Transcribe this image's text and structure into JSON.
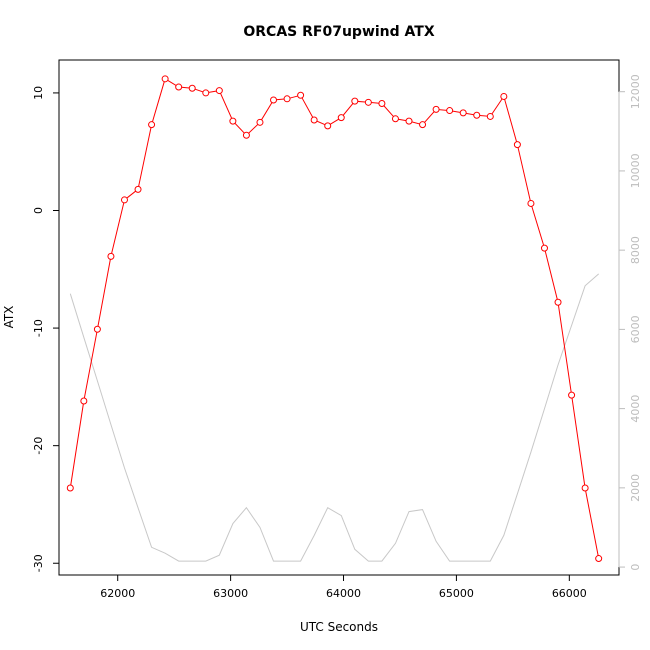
{
  "chart_data": {
    "type": "line",
    "title": "ORCAS RF07upwind ATX",
    "xlabel": "UTC Seconds",
    "ylabel": "ATX",
    "xlim": [
      61480,
      66440
    ],
    "ylim": [
      -31,
      12.8
    ],
    "y2lim": [
      -200,
      12800
    ],
    "x_ticks": [
      62000,
      63000,
      64000,
      65000,
      66000
    ],
    "y_ticks": [
      -30,
      -20,
      -10,
      0,
      10
    ],
    "y2_ticks": [
      0,
      2000,
      4000,
      6000,
      8000,
      10000,
      12000
    ],
    "grid": false,
    "colors": {
      "atx": "#ff0000",
      "altitude": "#c8c8c8"
    },
    "series": [
      {
        "axis": "left",
        "style": "line-markers",
        "x": [
          61580,
          61700,
          61820,
          61940,
          62060,
          62180,
          62300,
          62420,
          62540,
          62660,
          62780,
          62900,
          63020,
          63140,
          63260,
          63380,
          63500,
          63620,
          63740,
          63860,
          63980,
          64100,
          64220,
          64340,
          64460,
          64580,
          64700,
          64820,
          64940,
          65060,
          65180,
          65300,
          65420,
          65540,
          65660,
          65780,
          65900,
          66020,
          66140,
          66260
        ],
        "y": [
          -23.6,
          -16.2,
          -10.1,
          -3.9,
          0.9,
          1.8,
          7.3,
          11.2,
          10.5,
          10.4,
          10.0,
          10.2,
          7.6,
          6.4,
          7.5,
          9.4,
          9.5,
          9.8,
          7.7,
          7.2,
          7.9,
          9.3,
          9.2,
          9.1,
          7.8,
          7.6,
          7.3,
          8.6,
          8.5,
          8.3,
          8.1,
          8.0,
          9.7,
          5.6,
          0.6,
          -3.2,
          -7.8,
          -15.7,
          -23.6,
          -29.6
        ]
      },
      {
        "axis": "right",
        "style": "line",
        "x": [
          61580,
          61700,
          61820,
          61940,
          62060,
          62180,
          62300,
          62420,
          62540,
          62660,
          62780,
          62900,
          63020,
          63140,
          63260,
          63380,
          63500,
          63620,
          63740,
          63860,
          63980,
          64100,
          64220,
          64340,
          64460,
          64580,
          64700,
          64820,
          64940,
          65060,
          65180,
          65300,
          65420,
          65540,
          65660,
          65780,
          65900,
          66020,
          66140,
          66260
        ],
        "y": [
          6900,
          5800,
          4700,
          3600,
          2500,
          1500,
          500,
          350,
          150,
          150,
          150,
          300,
          1100,
          1500,
          1000,
          150,
          150,
          150,
          800,
          1500,
          1300,
          450,
          150,
          150,
          600,
          1400,
          1450,
          650,
          150,
          150,
          150,
          150,
          800,
          1850,
          2900,
          4000,
          5100,
          6100,
          7100,
          7400
        ]
      }
    ]
  }
}
